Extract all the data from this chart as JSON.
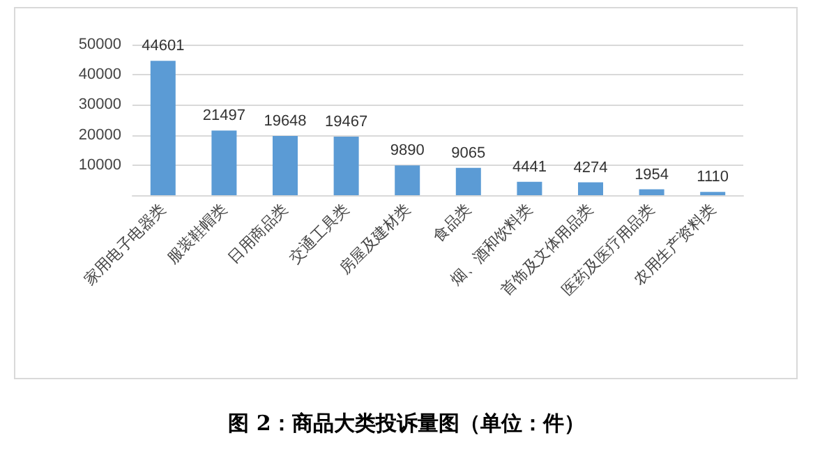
{
  "chart_data": {
    "type": "bar",
    "title": "图 2：商品大类投诉量图（单位：件）",
    "categories": [
      "家用电子电器类",
      "服装鞋帽类",
      "日用商品类",
      "交通工具类",
      "房屋及建材类",
      "食品类",
      "烟、酒和饮料类",
      "首饰及文体用品类",
      "医药及医疗用品类",
      "农用生产资料类"
    ],
    "values": [
      44601,
      21497,
      19648,
      19467,
      9890,
      9065,
      4441,
      4274,
      1954,
      1110
    ],
    "color": "#5b9bd5",
    "ylim": [
      0,
      50000
    ],
    "yticks": [
      {
        "value": 0,
        "label": null
      },
      10000,
      20000,
      30000,
      40000,
      50000
    ],
    "grid": "y",
    "data_labels": true
  }
}
